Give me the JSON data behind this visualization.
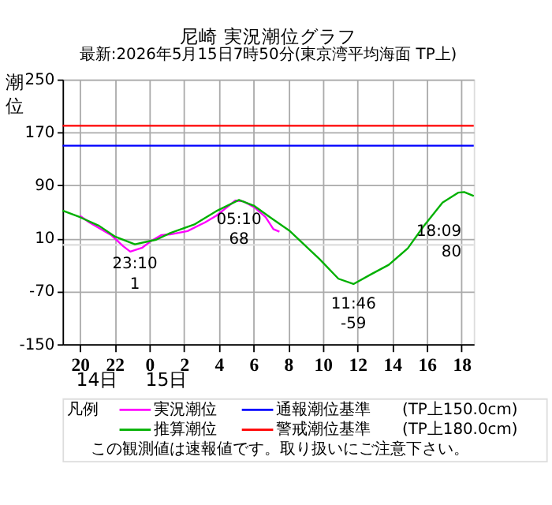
{
  "chart_data": {
    "type": "line",
    "title": "尼崎 実況潮位グラフ",
    "subtitle": "最新:2026年5月15日7時50分(東京湾平均海面 TP上)",
    "ylabel": "潮位",
    "legend_title": "凡例",
    "xlim": [
      "2026-05-14T19:00",
      "2026-05-15T18:42"
    ],
    "ylim": [
      -150,
      250
    ],
    "xticks": [
      {
        "value": "2026-05-14T20:00",
        "label": "20"
      },
      {
        "value": "2026-05-14T22:00",
        "label": "22"
      },
      {
        "value": "2026-05-15T00:00",
        "label": "0"
      },
      {
        "value": "2026-05-15T02:00",
        "label": "2"
      },
      {
        "value": "2026-05-15T04:00",
        "label": "4"
      },
      {
        "value": "2026-05-15T06:00",
        "label": "6"
      },
      {
        "value": "2026-05-15T08:00",
        "label": "8"
      },
      {
        "value": "2026-05-15T10:00",
        "label": "10"
      },
      {
        "value": "2026-05-15T12:00",
        "label": "12"
      },
      {
        "value": "2026-05-15T14:00",
        "label": "14"
      },
      {
        "value": "2026-05-15T16:00",
        "label": "16"
      },
      {
        "value": "2026-05-15T18:00",
        "label": "18"
      }
    ],
    "yticks": [
      250,
      170,
      90,
      10,
      -70,
      -150
    ],
    "grid": true,
    "legend": "bottom",
    "series": [
      {
        "name": "実況潮位",
        "color": "#ff00ff",
        "x": [
          "2026-05-14T20:00",
          "2026-05-14T20:33",
          "2026-05-14T21:48",
          "2026-05-14T22:30",
          "2026-05-14T22:54",
          "2026-05-14T23:36",
          "2026-05-15T00:06",
          "2026-05-15T00:42",
          "2026-05-15T01:12",
          "2026-05-15T02:12",
          "2026-05-15T03:12",
          "2026-05-15T03:51",
          "2026-05-15T04:57",
          "2026-05-15T05:24",
          "2026-05-15T06:03",
          "2026-05-15T06:42",
          "2026-05-15T07:09",
          "2026-05-15T07:30"
        ],
        "values": [
          44,
          34,
          15,
          -2,
          -10,
          -4,
          6,
          15,
          16,
          21,
          34,
          44,
          67,
          66,
          57,
          42,
          24,
          20
        ]
      },
      {
        "name": "推算潮位",
        "color": "#00b000",
        "x": [
          "2026-05-14T19:00",
          "2026-05-14T20:00",
          "2026-05-14T21:06",
          "2026-05-14T22:00",
          "2026-05-14T23:10",
          "2026-05-14T23:52",
          "2026-05-15T00:24",
          "2026-05-15T01:12",
          "2026-05-15T02:36",
          "2026-05-15T03:51",
          "2026-05-15T05:10",
          "2026-05-15T06:03",
          "2026-05-15T07:00",
          "2026-05-15T08:06",
          "2026-05-15T09:48",
          "2026-05-15T10:54",
          "2026-05-15T11:46",
          "2026-05-15T12:48",
          "2026-05-15T13:48",
          "2026-05-15T14:54",
          "2026-05-15T15:48",
          "2026-05-15T16:54",
          "2026-05-15T17:48",
          "2026-05-15T18:09",
          "2026-05-15T18:42"
        ],
        "values": [
          52,
          42,
          29,
          13,
          1,
          5,
          8,
          18,
          31,
          51,
          68,
          59,
          41,
          21,
          -21,
          -51,
          -59,
          -44,
          -30,
          -5,
          28,
          64,
          79,
          80,
          74
        ]
      }
    ],
    "ref_lines": [
      {
        "axis": "y",
        "value": 0,
        "color": "#dddddd"
      },
      {
        "axis": "y",
        "value": 150,
        "label": "通報潮位基準　　(TP上150.0cm)",
        "color": "#0000ff"
      },
      {
        "axis": "y",
        "value": 180,
        "label": "警戒潮位基準　　(TP上180.0cm)",
        "color": "#ff0000"
      }
    ],
    "annotations": [
      {
        "text": "23:10\n1",
        "x": "2026-05-14T23:10",
        "y": 1
      },
      {
        "text": "05:10\n68",
        "x": "2026-05-15T05:10",
        "y": 68
      },
      {
        "text": "11:46\n-59",
        "x": "2026-05-15T11:46",
        "y": -59
      },
      {
        "text": "18:09\n80",
        "x": "2026-05-15T18:09",
        "y": 80
      },
      "14日",
      "15日",
      "この観測値は速報値です。取り扱いにご注意下さい。"
    ]
  }
}
